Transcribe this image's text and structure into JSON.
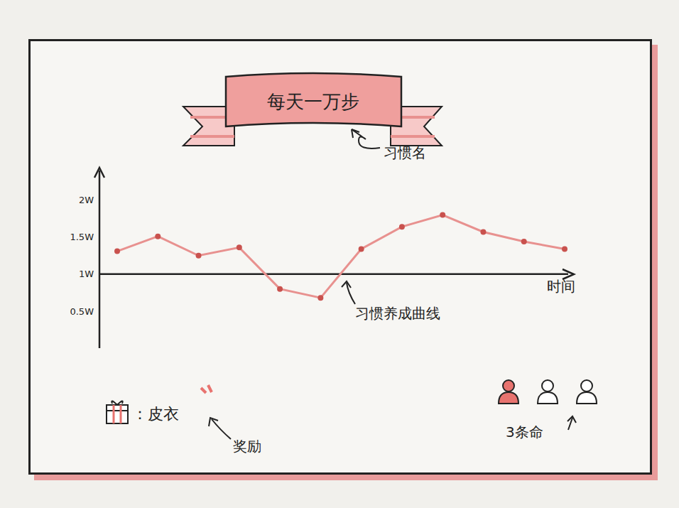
{
  "title": "每天一万步",
  "title_note": "习惯名",
  "reward": "：皮衣",
  "reward_note": "奖励",
  "lives": 3,
  "lives_used": 1,
  "lives_note": "3条命",
  "chart_data": {
    "type": "line",
    "curve_note": "习惯养成曲线",
    "x_label": "时间",
    "categories": [
      null,
      null,
      null,
      null,
      null,
      null,
      null,
      null,
      null,
      null,
      null,
      null
    ],
    "values": [
      1.31,
      1.51,
      1.25,
      1.36,
      0.8,
      0.68,
      1.34,
      1.64,
      1.8,
      1.57,
      1.44,
      1.34
    ],
    "color": "#e8918f",
    "marker": "circle",
    "ylim": [
      0,
      2.4
    ],
    "yticks": [
      {
        "value": 0.5,
        "label": "0.5W"
      },
      {
        "value": 1,
        "label": "1W"
      },
      {
        "value": 1.5,
        "label": "1.5W"
      },
      {
        "value": 2,
        "label": "2W"
      }
    ],
    "x_axis_crossing": 1,
    "tick_labels": "y"
  }
}
